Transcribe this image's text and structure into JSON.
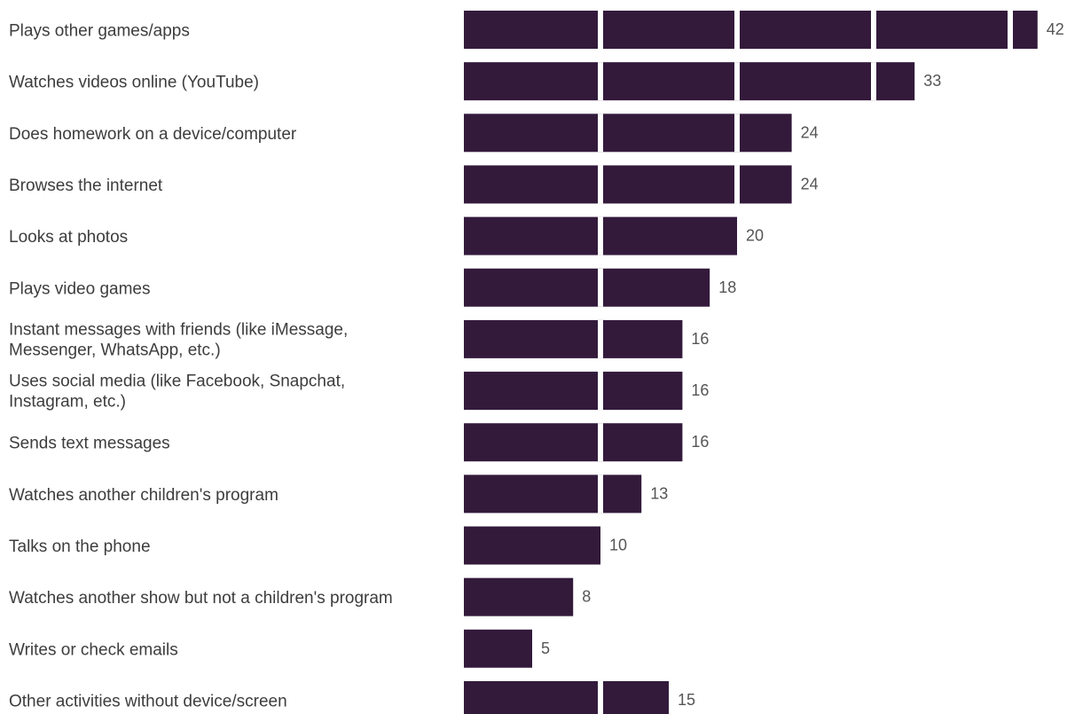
{
  "colors": {
    "bar": "#331a3b",
    "label": "#3d3d3d",
    "value": "#555555",
    "segment_gap": "#ffffff"
  },
  "chart_data": {
    "type": "bar",
    "orientation": "horizontal",
    "segment_size": 10,
    "categories": [
      [
        "Plays other games/apps"
      ],
      [
        "Watches videos online (YouTube)"
      ],
      [
        "Does homework on a device/computer"
      ],
      [
        "Browses the internet"
      ],
      [
        "Looks at photos"
      ],
      [
        "Plays video games"
      ],
      [
        "Instant messages with friends (like iMessage,",
        "Messenger, WhatsApp, etc.)"
      ],
      [
        "Uses social media (like Facebook, Snapchat,",
        "Instagram, etc.)"
      ],
      [
        "Sends text messages"
      ],
      [
        "Watches another children's program"
      ],
      [
        "Talks on the phone"
      ],
      [
        "Watches another show but not a children's program"
      ],
      [
        "Writes or check emails"
      ],
      [
        "Other activities without device/screen"
      ]
    ],
    "values": [
      42,
      33,
      24,
      24,
      20,
      18,
      16,
      16,
      16,
      13,
      10,
      8,
      5,
      15
    ],
    "value_labels": [
      "42",
      "33",
      "24",
      "24",
      "20",
      "18",
      "16",
      "16",
      "16",
      "13",
      "10",
      "8",
      "5",
      "15"
    ]
  }
}
